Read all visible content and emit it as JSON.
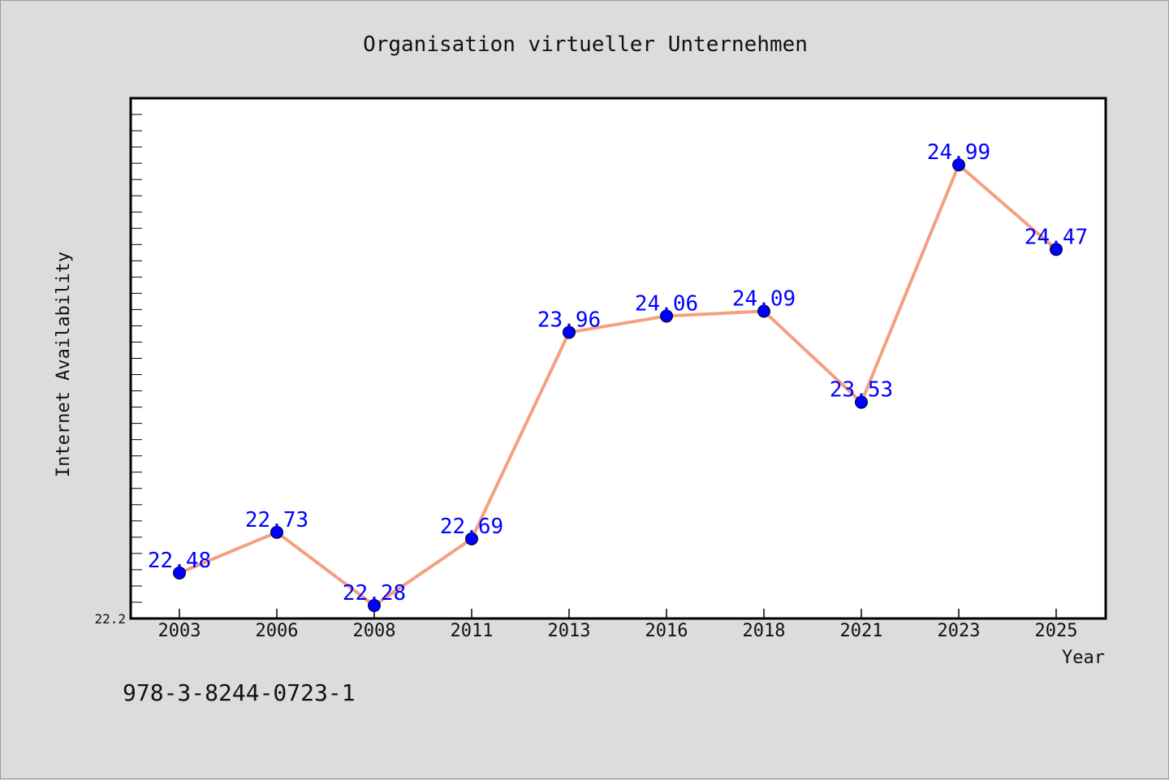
{
  "chart_data": {
    "type": "line",
    "title": "Organisation virtueller Unternehmen",
    "xlabel": "Year",
    "ylabel": "Internet Availability",
    "x": [
      "2003",
      "2006",
      "2008",
      "2011",
      "2013",
      "2016",
      "2018",
      "2021",
      "2023",
      "2025"
    ],
    "series": [
      {
        "values": [
          22.48,
          22.73,
          22.28,
          22.69,
          23.96,
          24.06,
          24.09,
          23.53,
          24.99,
          24.47
        ],
        "labels": [
          "22.48",
          "22.73",
          "22.28",
          "22.69",
          "23.96",
          "24.06",
          "24.09",
          "23.53",
          "24.99",
          "24.47"
        ]
      }
    ],
    "ylim": [
      22.2,
      25.4
    ],
    "ytick_labels": [
      "22.2"
    ],
    "grid": false,
    "colors": {
      "line": "#f4a080",
      "marker": "#0000ff",
      "data_label": "#0000ff",
      "plot_background": "#ffffff",
      "page_background": "#dcdcdc"
    }
  },
  "footer": {
    "isbn": "978-3-8244-0723-1"
  }
}
